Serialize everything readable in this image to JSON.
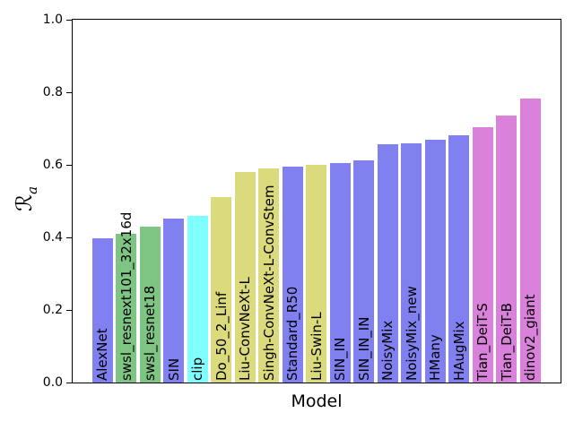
{
  "chart_data": {
    "type": "bar",
    "title": "",
    "xlabel": "Model",
    "ylabel": "ℛ_a",
    "ylabel_main": "ℛ",
    "ylabel_sub": "a",
    "ylim": [
      0.0,
      1.0
    ],
    "yticks": [
      0.0,
      0.2,
      0.4,
      0.6,
      0.8,
      1.0
    ],
    "grid": false,
    "legend": false,
    "bar_label_rotation": 90,
    "bar_label_position": "inside-bottom",
    "categories": [
      "AlexNet",
      "swsl_resnext101_32x16d",
      "swsl_resnet18",
      "SIN",
      "clip",
      "Do_50_2_Linf",
      "Liu-ConvNeXt-L",
      "Singh-ConvNeXt-L-ConvStem",
      "Standard_R50",
      "Liu-Swin-L",
      "SIN_IN",
      "SIN_IN_IN",
      "NoisyMix",
      "NoisyMix_new",
      "HMany",
      "HAugMix",
      "Tian_DeiT-S",
      "Tian_DeiT-B",
      "dinov2_giant"
    ],
    "values": [
      0.398,
      0.41,
      0.43,
      0.453,
      0.46,
      0.51,
      0.581,
      0.589,
      0.595,
      0.6,
      0.605,
      0.612,
      0.656,
      0.66,
      0.668,
      0.682,
      0.704,
      0.737,
      0.782
    ],
    "colors": [
      "#8080f0",
      "#7ec483",
      "#7ec483",
      "#8080f0",
      "#80ffff",
      "#dbdb7d",
      "#dbdb7d",
      "#dbdb7d",
      "#8080f0",
      "#dbdb7d",
      "#8080f0",
      "#8080f0",
      "#8080f0",
      "#8080f0",
      "#8080f0",
      "#8080f0",
      "#da81db",
      "#da81db",
      "#da81db"
    ],
    "palette_legend": {
      "purple": "#8080f0",
      "green": "#7ec483",
      "cyan": "#80ffff",
      "khaki": "#dbdb7d",
      "violet": "#da81db"
    },
    "text_color": "#000000",
    "background_color": "#ffffff"
  }
}
